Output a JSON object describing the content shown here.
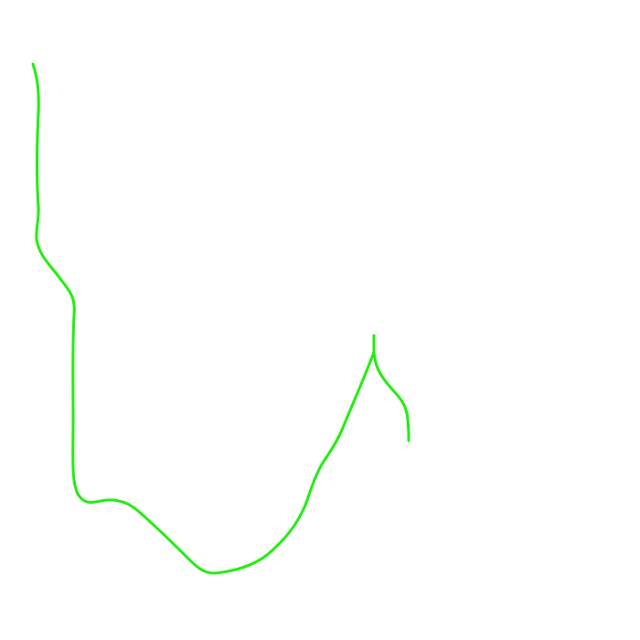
{
  "canvas": {
    "background": "#ffffff"
  },
  "stroke": {
    "color": "#22ee11"
  },
  "shapes": [
    {
      "name": "main-curve"
    },
    {
      "name": "branch-stem"
    },
    {
      "name": "branch-curve"
    }
  ]
}
